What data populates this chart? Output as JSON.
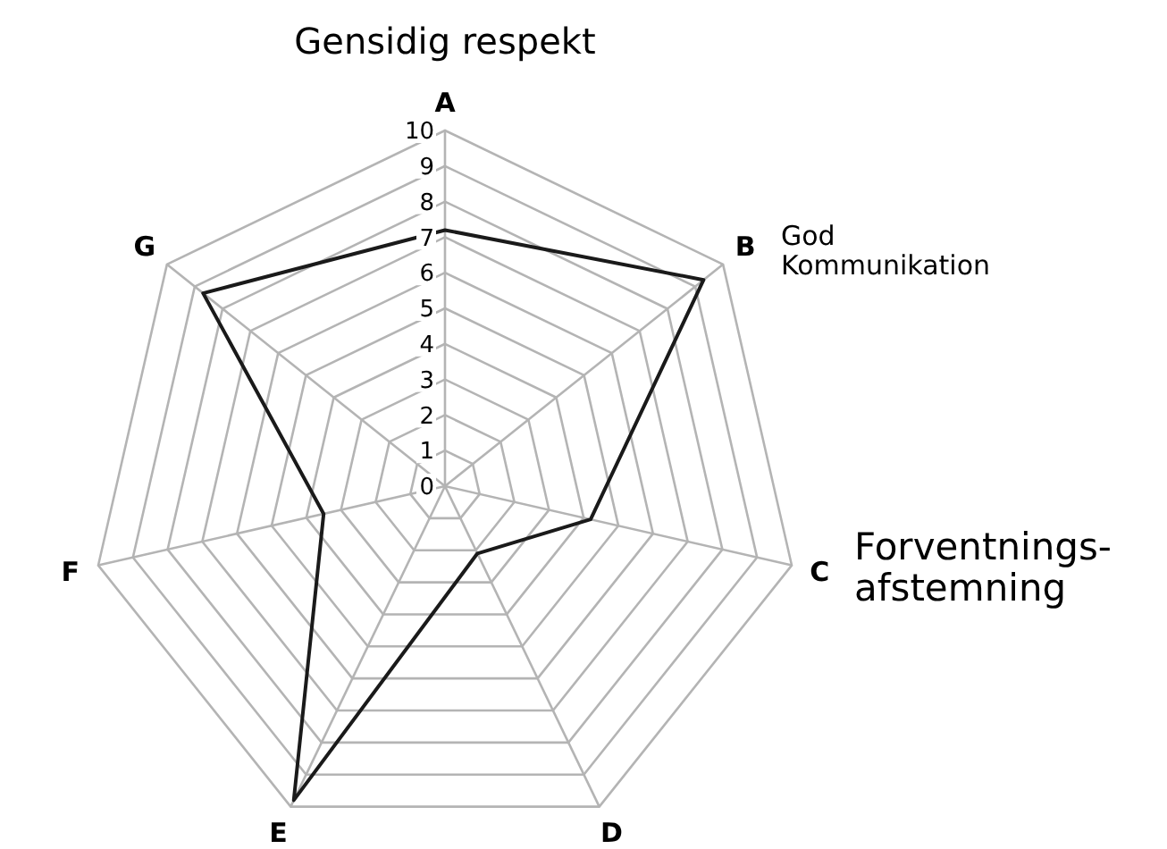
{
  "chart_data": {
    "type": "radar",
    "categories": [
      "A",
      "B",
      "C",
      "D",
      "E",
      "F",
      "G"
    ],
    "series": [
      {
        "color": "#1a1a1a",
        "values": [
          7.2,
          9.3,
          4.2,
          2.1,
          9.8,
          3.5,
          8.7
        ]
      }
    ],
    "ylim": [
      0,
      10
    ],
    "yticks": [
      0,
      1,
      2,
      3,
      4,
      5,
      6,
      7,
      8,
      9,
      10
    ],
    "grid": true,
    "marker": "none",
    "annotations": [
      "Gensidig respekt",
      "God Kommunikation",
      "Forventnings-afstemning"
    ]
  }
}
